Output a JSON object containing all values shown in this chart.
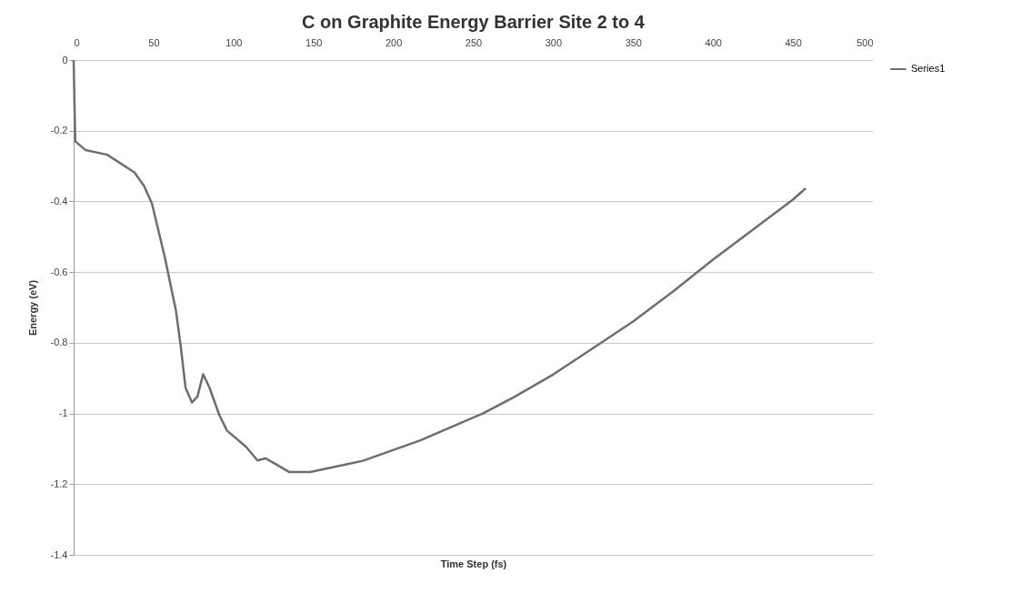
{
  "chart_data": {
    "type": "line",
    "title": "C on Graphite Energy Barrier Site 2 to 4",
    "xlabel": "Time Step (fs)",
    "ylabel": "Energy (eV)",
    "x": [
      0,
      1,
      7.5,
      21,
      38,
      44,
      49,
      57,
      64,
      67,
      70,
      74,
      77.5,
      81,
      85,
      91,
      96,
      108,
      115,
      120,
      127,
      135,
      148,
      181,
      217,
      256,
      275,
      300,
      325,
      350,
      375,
      400,
      425,
      450,
      458
    ],
    "series": [
      {
        "name": "Series1",
        "color": "#6e6e6e",
        "values": [
          0,
          -0.23,
          -0.255,
          -0.268,
          -0.318,
          -0.356,
          -0.406,
          -0.557,
          -0.709,
          -0.81,
          -0.927,
          -0.969,
          -0.952,
          -0.889,
          -0.927,
          -1.003,
          -1.049,
          -1.095,
          -1.133,
          -1.127,
          -1.145,
          -1.166,
          -1.166,
          -1.134,
          -1.076,
          -1.0,
          -0.955,
          -0.89,
          -0.815,
          -0.74,
          -0.655,
          -0.565,
          -0.48,
          -0.395,
          -0.363
        ]
      }
    ],
    "xlim": [
      0,
      500
    ],
    "xticks": [
      0,
      50,
      100,
      150,
      200,
      250,
      300,
      350,
      400,
      450,
      500
    ],
    "ylim": [
      -1.4,
      0
    ],
    "yticks": [
      0,
      -0.2,
      -0.4,
      -0.6,
      -0.8,
      -1,
      -1.2,
      -1.4
    ],
    "grid": "y",
    "legend": "right",
    "marker": "none",
    "line_style": "solid"
  }
}
